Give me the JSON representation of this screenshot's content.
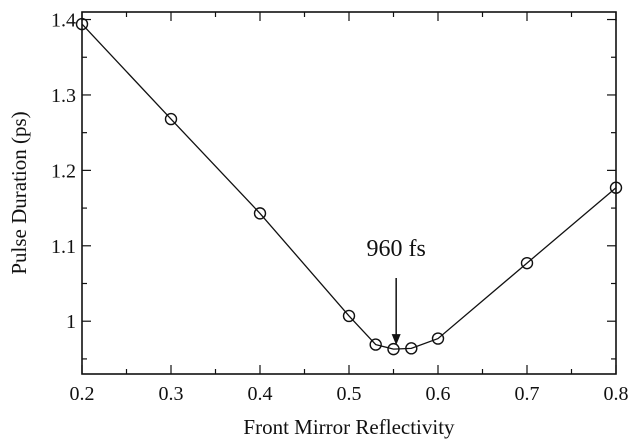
{
  "chart_data": {
    "type": "line",
    "title": "",
    "xlabel": "Front Mirror Reflectivity",
    "ylabel": "Pulse Duration (ps)",
    "xlim": [
      0.2,
      0.8
    ],
    "ylim": [
      0.93,
      1.41
    ],
    "xticks": [
      0.2,
      0.3,
      0.4,
      0.5,
      0.6,
      0.7,
      0.8
    ],
    "xtick_labels": [
      "0.2",
      "0.3",
      "0.4",
      "0.5",
      "0.6",
      "0.7",
      "0.8"
    ],
    "yticks": [
      1.0,
      1.1,
      1.2,
      1.3,
      1.4
    ],
    "ytick_labels": [
      "1",
      "1.1",
      "1.2",
      "1.3",
      "1.4"
    ],
    "grid": false,
    "marker": "open-circle",
    "line_color": "#111111",
    "series": [
      {
        "x": [
          0.2,
          0.3,
          0.4,
          0.5,
          0.53,
          0.55,
          0.57,
          0.6,
          0.7,
          0.8
        ],
        "y": [
          1.394,
          1.268,
          1.143,
          1.007,
          0.969,
          0.963,
          0.964,
          0.977,
          1.077,
          1.177
        ]
      }
    ],
    "annotations": [
      {
        "text": "960 fs",
        "arrow_to": {
          "x": 0.553,
          "y": 0.967
        }
      }
    ]
  }
}
